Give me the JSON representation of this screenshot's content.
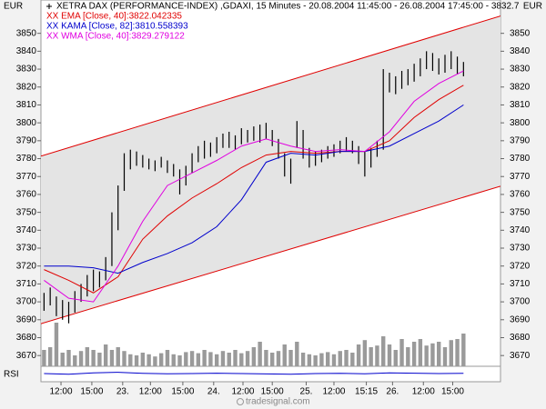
{
  "chart_data": {
    "type": "ohlc",
    "title": "XETRA DAX (PERFORMANCE-INDEX) ,GDAXI, 15 Minutes - 20.08.2004 11:45:00 - 26.08.2004 17:45:00 - 3832.7",
    "ylabel": "EUR",
    "y2label": "EUR",
    "bar_color": "#000000",
    "high": [
      3705,
      3708,
      3703,
      3701,
      3700,
      3706,
      3710,
      3715,
      3718,
      3717,
      3725,
      3750,
      3765,
      3783,
      3785,
      3784,
      3782,
      3780,
      3779,
      3781,
      3779,
      3777,
      3774,
      3776,
      3783,
      3787,
      3790,
      3789,
      3792,
      3794,
      3795,
      3793,
      3797,
      3796,
      3798,
      3799,
      3800,
      3796,
      3791,
      3783,
      3780,
      3801,
      3796,
      3786,
      3784,
      3785,
      3787,
      3788,
      3790,
      3792,
      3790,
      3787,
      3784,
      3786,
      3790,
      3830,
      3828,
      3826,
      3829,
      3830,
      3833,
      3836,
      3840,
      3839,
      3836,
      3838,
      3840,
      3837,
      3834
    ],
    "low": [
      3695,
      3698,
      3692,
      3690,
      3688,
      3694,
      3700,
      3703,
      3706,
      3708,
      3712,
      3720,
      3740,
      3762,
      3774,
      3776,
      3775,
      3774,
      3773,
      3775,
      3772,
      3770,
      3760,
      3765,
      3772,
      3778,
      3780,
      3781,
      3783,
      3786,
      3786,
      3785,
      3788,
      3789,
      3790,
      3789,
      3791,
      3787,
      3780,
      3770,
      3766,
      3786,
      3780,
      3775,
      3776,
      3778,
      3780,
      3781,
      3783,
      3784,
      3783,
      3777,
      3770,
      3775,
      3781,
      3785,
      3817,
      3816,
      3819,
      3821,
      3823,
      3826,
      3830,
      3829,
      3827,
      3828,
      3830,
      3827,
      3826
    ],
    "ylim": [
      3664,
      3861
    ],
    "yticks": [
      3670,
      3680,
      3690,
      3700,
      3710,
      3720,
      3730,
      3740,
      3750,
      3760,
      3770,
      3780,
      3790,
      3800,
      3810,
      3820,
      3830,
      3840,
      3850
    ],
    "xlim": [
      -0.5,
      74
    ],
    "xticks": [
      {
        "value": 2.75,
        "label": "12:00"
      },
      {
        "value": 7.75,
        "label": "15:00"
      },
      {
        "value": 12.75,
        "label": "23."
      },
      {
        "value": 17.25,
        "label": "12:00"
      },
      {
        "value": 22.5,
        "label": "15:00"
      },
      {
        "value": 27.5,
        "label": "24."
      },
      {
        "value": 32.25,
        "label": "12:00"
      },
      {
        "value": 37,
        "label": "15:00"
      },
      {
        "value": 42.5,
        "label": "25."
      },
      {
        "value": 47,
        "label": "12:00"
      },
      {
        "value": 52.25,
        "label": "15:15"
      },
      {
        "value": 56.5,
        "label": "26."
      },
      {
        "value": 61.5,
        "label": "12:00"
      },
      {
        "value": 66.25,
        "label": "15:00"
      }
    ],
    "series": [
      {
        "name": "XX EMA [Close, 40]:3822.042335",
        "color": "#e00000",
        "x": [
          0,
          4,
          8,
          12,
          16,
          20,
          24,
          28,
          32,
          36,
          40,
          44,
          48,
          52,
          56,
          60,
          64,
          68
        ],
        "values": [
          3718,
          3712,
          3705,
          3714,
          3735,
          3748,
          3758,
          3766,
          3775,
          3782,
          3784,
          3783,
          3784,
          3784,
          3790,
          3803,
          3813,
          3821
        ]
      },
      {
        "name": "XX KAMA [Close, 82]:3810.558393",
        "color": "#0000cc",
        "x": [
          0,
          4,
          8,
          12,
          16,
          20,
          24,
          28,
          32,
          36,
          40,
          44,
          48,
          52,
          56,
          60,
          64,
          68
        ],
        "values": [
          3720,
          3720,
          3719,
          3716,
          3722,
          3727,
          3733,
          3742,
          3757,
          3778,
          3783,
          3782,
          3784,
          3784,
          3787,
          3794,
          3801,
          3810
        ]
      },
      {
        "name": "XX WMA [Close, 40]:3829.279122",
        "color": "#e000e0",
        "x": [
          0,
          4,
          8,
          12,
          16,
          20,
          24,
          28,
          32,
          36,
          40,
          44,
          48,
          52,
          56,
          60,
          64,
          68
        ],
        "values": [
          3712,
          3702,
          3700,
          3720,
          3745,
          3765,
          3772,
          3779,
          3787,
          3791,
          3787,
          3784,
          3785,
          3784,
          3795,
          3812,
          3822,
          3829
        ]
      }
    ],
    "channel": {
      "color": "#e00000",
      "fill": "#e4e4e4",
      "x": [
        -0.5,
        74
      ],
      "upper": [
        3781.4,
        3859.7
      ],
      "lower": [
        3687.8,
        3764.6
      ]
    },
    "volume": {
      "color": "#9a9a9a",
      "values": [
        30,
        35,
        80,
        25,
        30,
        20,
        28,
        35,
        30,
        25,
        40,
        30,
        35,
        28,
        22,
        20,
        25,
        22,
        18,
        24,
        30,
        22,
        20,
        26,
        28,
        24,
        30,
        26,
        22,
        28,
        25,
        30,
        24,
        28,
        35,
        45,
        30,
        25,
        28,
        40,
        30,
        45,
        25,
        22,
        20,
        24,
        26,
        22,
        28,
        30,
        25,
        40,
        48,
        35,
        38,
        55,
        40,
        30,
        50,
        35,
        45,
        50,
        38,
        42,
        45,
        35,
        48,
        50,
        60
      ]
    },
    "rsi": {
      "label": "RSI",
      "color": "#0000cc",
      "ylim": [
        0,
        100
      ],
      "x": [
        0,
        4,
        8,
        12,
        16,
        20,
        24,
        28,
        32,
        36,
        40,
        44,
        48,
        52,
        56,
        60,
        64,
        68
      ],
      "values": [
        50,
        45,
        55,
        60,
        52,
        48,
        50,
        53,
        50,
        47,
        45,
        50,
        52,
        48,
        55,
        53,
        50,
        52
      ]
    },
    "footer": "tradesignal.com"
  }
}
